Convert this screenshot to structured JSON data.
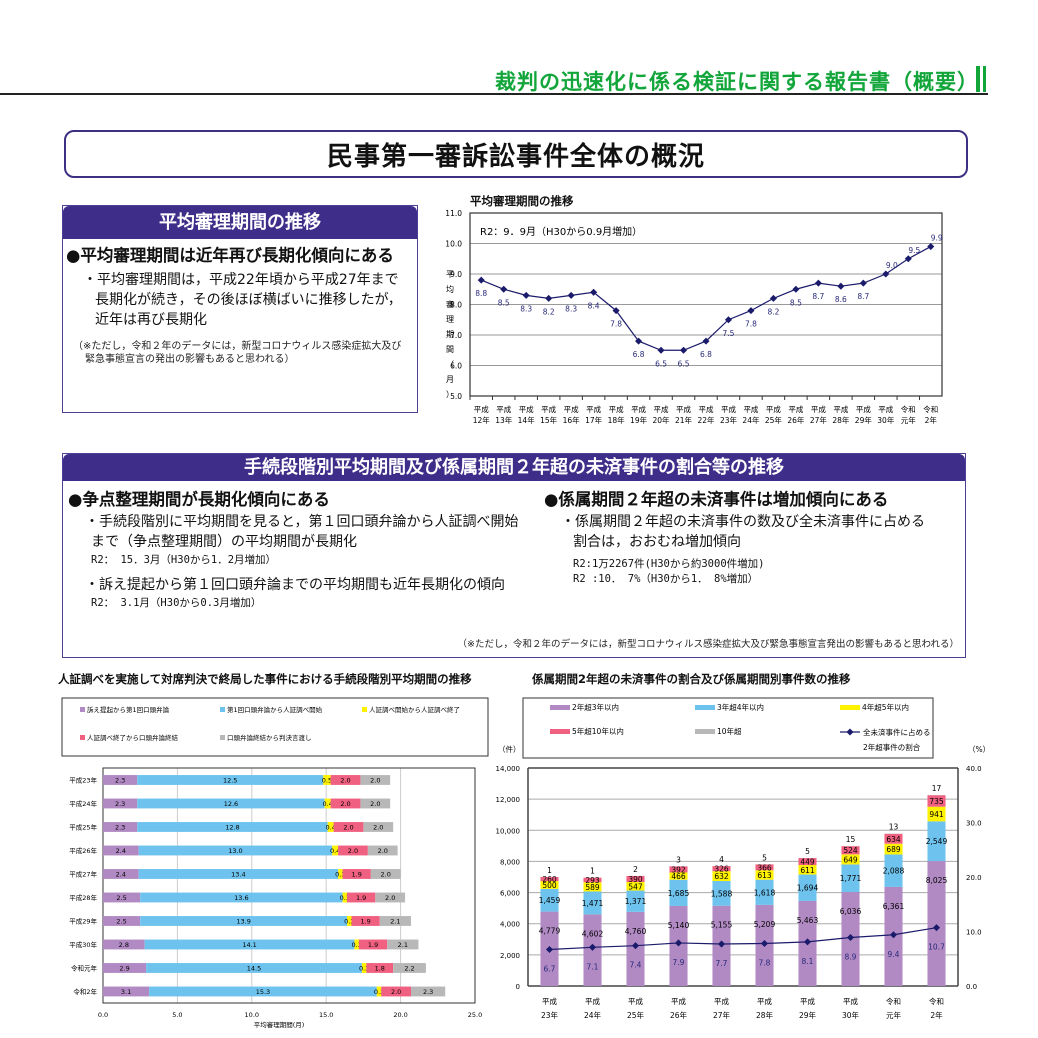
{
  "header": {
    "title": "裁判の迅速化に係る検証に関する報告書（概要）"
  },
  "main_title": "民事第一審訴訟事件全体の概況",
  "section1": {
    "heading": "平均審理期間の推移",
    "bullet": "●平均審理期間は近年再び長期化傾向にある",
    "lines": [
      "・平均審理期間は，平成22年頃から平成27年まで",
      "長期化が続き，その後ほぼ横ばいに推移したが，",
      "近年は再び長期化"
    ],
    "note": [
      "（※ただし，令和２年のデータには，新型コロナウィルス感染症拡大及び",
      "緊急事態宣言の発出の影響もあると思われる）"
    ]
  },
  "section2": {
    "heading": "手続段階別平均期間及び係属期間２年超の未済事件の割合等の推移",
    "left": {
      "bullet": "●争点整理期間が長期化傾向にある",
      "lines": [
        "・手続段階別に平均期間を見ると，第１回口頭弁論から人証調べ開始",
        "まで（争点整理期間）の平均期間が長期化"
      ],
      "stat1": "R2： 15．3月（H30から1．2月増加）",
      "line3": "・訴え提起から第１回口頭弁論までの平均期間も近年長期化の傾向",
      "stat2": "R2： 3.1月（H30から0.3月増加）"
    },
    "right": {
      "bullet": "●係属期間２年超の未済事件は増加傾向にある",
      "lines": [
        "・係属期間２年超の未済事件の数及び全未済事件に占める",
        "割合は，おおむね増加傾向"
      ],
      "stat1": "R2:1万2267件(H30から約3000件増加)",
      "stat2": "R2 :10． 7%（H30から1． 8%増加）"
    },
    "note": "（※ただし，令和２年のデータには，新型コロナウィルス感染症拡大及び緊急事態宣言発出の影響もあると思われる）"
  },
  "chart_data": [
    {
      "type": "line",
      "title": "平均審理期間の推移",
      "annotation": "R2：9．9月（H30から0.9月増加）",
      "ylabel": "平均審理期間（月）",
      "ylim": [
        5.0,
        11.0
      ],
      "yticks": [
        "5.0",
        "6.0",
        "7.0",
        "8.0",
        "9.0",
        "10.0",
        "11.0"
      ],
      "categories": [
        [
          "平成",
          "12年"
        ],
        [
          "平成",
          "13年"
        ],
        [
          "平成",
          "14年"
        ],
        [
          "平成",
          "15年"
        ],
        [
          "平成",
          "16年"
        ],
        [
          "平成",
          "17年"
        ],
        [
          "平成",
          "18年"
        ],
        [
          "平成",
          "19年"
        ],
        [
          "平成",
          "20年"
        ],
        [
          "平成",
          "21年"
        ],
        [
          "平成",
          "22年"
        ],
        [
          "平成",
          "23年"
        ],
        [
          "平成",
          "24年"
        ],
        [
          "平成",
          "25年"
        ],
        [
          "平成",
          "26年"
        ],
        [
          "平成",
          "27年"
        ],
        [
          "平成",
          "28年"
        ],
        [
          "平成",
          "29年"
        ],
        [
          "平成",
          "30年"
        ],
        [
          "令和",
          "元年"
        ],
        [
          "令和",
          "2年"
        ]
      ],
      "values": [
        8.8,
        8.5,
        8.3,
        8.2,
        8.3,
        8.4,
        7.8,
        6.8,
        6.5,
        6.5,
        6.8,
        7.5,
        7.8,
        8.2,
        8.5,
        8.7,
        8.6,
        8.7,
        9.0,
        9.5,
        9.9
      ],
      "color": "#1b1b6b"
    },
    {
      "type": "bar",
      "orientation": "horizontal-stacked",
      "title": "人証調べを実施して対席判決で終局した事件における手続段階別平均期間の推移",
      "xlabel": "平均審理期間(月)",
      "xlim": [
        0,
        25
      ],
      "xticks": [
        "0.0",
        "5.0",
        "10.0",
        "15.0",
        "20.0",
        "25.0"
      ],
      "categories": [
        "平成23年",
        "平成24年",
        "平成25年",
        "平成26年",
        "平成27年",
        "平成28年",
        "平成29年",
        "平成30年",
        "令和元年",
        "令和2年"
      ],
      "series": [
        {
          "name": "訴え提起から第1回口頭弁論",
          "color": "#b18ac4",
          "values": [
            2.3,
            2.3,
            2.3,
            2.4,
            2.4,
            2.5,
            2.5,
            2.8,
            2.9,
            3.1
          ]
        },
        {
          "name": "第1回口頭弁論から人証調べ開始",
          "color": "#6ec3ee",
          "values": [
            12.5,
            12.6,
            12.8,
            13.0,
            13.4,
            13.6,
            13.9,
            14.1,
            14.5,
            15.3
          ]
        },
        {
          "name": "人証調べ開始から人証調べ終了",
          "color": "#fff200",
          "values": [
            0.5,
            0.4,
            0.4,
            0.4,
            0.3,
            0.3,
            0.3,
            0.3,
            0.3,
            0.3
          ]
        },
        {
          "name": "人証調べ終了から口頭弁論終結",
          "color": "#f06080",
          "values": [
            2.0,
            2.0,
            2.0,
            2.0,
            1.9,
            1.9,
            1.9,
            1.9,
            1.8,
            2.0
          ]
        },
        {
          "name": "口頭弁論終結から判決言渡し",
          "color": "#b8b8b8",
          "values": [
            2.0,
            2.0,
            2.0,
            2.0,
            2.0,
            2.0,
            2.1,
            2.1,
            2.2,
            2.3
          ]
        }
      ]
    },
    {
      "type": "bar",
      "orientation": "vertical-stacked-with-line",
      "title": "係属期間2年超の未済事件の割合及び係属期間別事件数の推移",
      "ylabel_left": "（件）",
      "ylabel_right": "（%）",
      "ylim_left": [
        0,
        14000
      ],
      "yticks_left": [
        "0",
        "2,000",
        "4,000",
        "6,000",
        "8,000",
        "10,000",
        "12,000",
        "14,000"
      ],
      "ylim_right": [
        0,
        40
      ],
      "yticks_right": [
        "0.0",
        "10.0",
        "20.0",
        "30.0",
        "40.0"
      ],
      "categories": [
        [
          "平成",
          "23年"
        ],
        [
          "平成",
          "24年"
        ],
        [
          "平成",
          "25年"
        ],
        [
          "平成",
          "26年"
        ],
        [
          "平成",
          "27年"
        ],
        [
          "平成",
          "28年"
        ],
        [
          "平成",
          "29年"
        ],
        [
          "平成",
          "30年"
        ],
        [
          "令和",
          "元年"
        ],
        [
          "令和",
          "2年"
        ]
      ],
      "series": [
        {
          "name": "2年超3年以内",
          "color": "#b18ac4",
          "values": [
            4779,
            4602,
            4760,
            5140,
            5155,
            5209,
            5463,
            6036,
            6361,
            8025
          ],
          "labels": [
            "4,779",
            "4,602",
            "4,760",
            "5,140",
            "5,155",
            "5,209",
            "5,463",
            "6,036",
            "6,361",
            "8,025"
          ]
        },
        {
          "name": "3年超4年以内",
          "color": "#6ec3ee",
          "values": [
            1459,
            1471,
            1371,
            1685,
            1588,
            1618,
            1694,
            1771,
            2088,
            2549
          ],
          "labels": [
            "1,459",
            "1,471",
            "1,371",
            "1,685",
            "1,588",
            "1,618",
            "1,694",
            "1,771",
            "2,088",
            "2,549"
          ]
        },
        {
          "name": "4年超5年以内",
          "color": "#fff200",
          "values": [
            500,
            589,
            547,
            466,
            632,
            613,
            611,
            649,
            689,
            941
          ],
          "labels": [
            "500",
            "589",
            "547",
            "466",
            "632",
            "613",
            "611",
            "649",
            "689",
            "941"
          ]
        },
        {
          "name": "5年超10年以内",
          "color": "#f06080",
          "values": [
            260,
            293,
            390,
            392,
            326,
            366,
            449,
            524,
            634,
            735
          ],
          "labels": [
            "260",
            "293",
            "390",
            "392",
            "326",
            "366",
            "449",
            "524",
            "634",
            "735"
          ]
        },
        {
          "name": "10年超",
          "color": "#b8b8b8",
          "values": [
            1,
            1,
            2,
            3,
            4,
            5,
            5,
            15,
            13,
            17
          ],
          "labels": [
            "1",
            "1",
            "2",
            "3",
            "4",
            "5",
            "5",
            "15",
            "13",
            "17"
          ]
        }
      ],
      "line_series": {
        "name": "全未済事件に占める2年超事件の割合",
        "color": "#1b1b6b",
        "values": [
          6.7,
          7.1,
          7.4,
          7.9,
          7.7,
          7.8,
          8.1,
          8.9,
          9.4,
          10.7
        ]
      }
    }
  ]
}
